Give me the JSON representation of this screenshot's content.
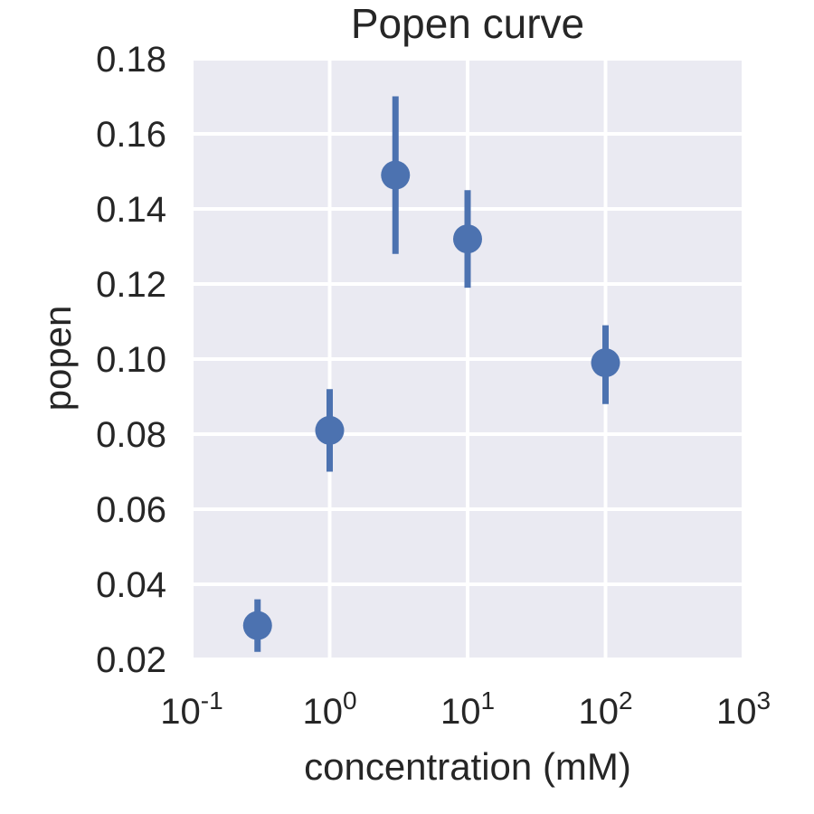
{
  "chart_data": {
    "type": "scatter",
    "title": "Popen curve",
    "xlabel": "concentration (mM)",
    "ylabel": "popen",
    "xscale": "log",
    "xlim": [
      0.1,
      1000
    ],
    "ylim": [
      0.02,
      0.18
    ],
    "grid": true,
    "x_tick_labels": [
      {
        "base": "10",
        "exp": "-1"
      },
      {
        "base": "10",
        "exp": "0"
      },
      {
        "base": "10",
        "exp": "1"
      },
      {
        "base": "10",
        "exp": "2"
      },
      {
        "base": "10",
        "exp": "3"
      }
    ],
    "y_tick_labels": [
      "0.02",
      "0.04",
      "0.06",
      "0.08",
      "0.10",
      "0.12",
      "0.14",
      "0.16",
      "0.18"
    ],
    "colors": {
      "background": "#eaeaf2",
      "grid": "#ffffff",
      "marker": "#4c72b0"
    },
    "points": [
      {
        "x": 0.3,
        "y": 0.029,
        "err_low": 0.022,
        "err_high": 0.036
      },
      {
        "x": 1,
        "y": 0.081,
        "err_low": 0.07,
        "err_high": 0.092
      },
      {
        "x": 3,
        "y": 0.149,
        "err_low": 0.128,
        "err_high": 0.17
      },
      {
        "x": 10,
        "y": 0.132,
        "err_low": 0.119,
        "err_high": 0.145
      },
      {
        "x": 100,
        "y": 0.099,
        "err_low": 0.088,
        "err_high": 0.109
      }
    ]
  }
}
